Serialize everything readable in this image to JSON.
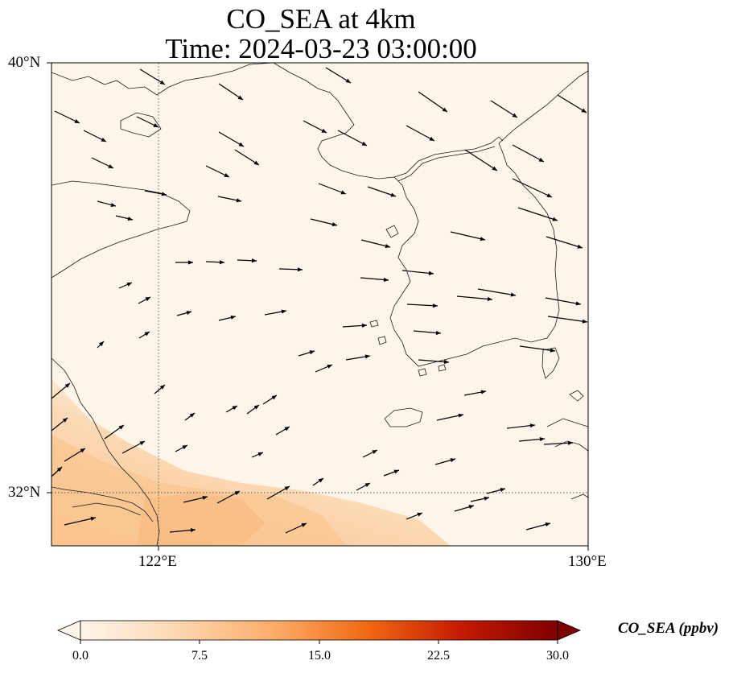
{
  "title": {
    "line1": "CO_SEA at 4km",
    "line2": "Time: 2024-03-23 03:00:00"
  },
  "map": {
    "type": "filled contour map with wind vectors",
    "lat_labels": [
      "40°N",
      "32°N"
    ],
    "lon_labels": [
      "122°E",
      "130°E"
    ],
    "extent": {
      "lon": [
        120,
        130
      ],
      "lat": [
        31,
        40
      ]
    },
    "gridlines": {
      "lon": [
        122
      ],
      "lat": [
        32
      ],
      "style": "dotted"
    },
    "field_description": "low values (~0-2 ppbv) over most of domain; elevated values (~5-9 ppbv) in south-west corner near 120-126°E, 31-33°N",
    "overlays": [
      "coastlines",
      "wind-vectors"
    ]
  },
  "colorbar": {
    "label": "CO_SEA (ppbv)",
    "ticks": [
      "0.0",
      "7.5",
      "15.0",
      "22.5",
      "30.0"
    ],
    "min": 0,
    "max": 30,
    "extend": "both",
    "colormap": [
      "#fff5eb",
      "#fdd3a8",
      "#fda55e",
      "#f36a2a",
      "#c92d07",
      "#7f0000"
    ]
  },
  "colors": {
    "background_low": "#fdf5ea",
    "field_mid": "#fbd9b4",
    "field_high": "#f9c08c",
    "vector": "#000000",
    "coastline": "#1a1a1a",
    "grid": "#555555"
  }
}
